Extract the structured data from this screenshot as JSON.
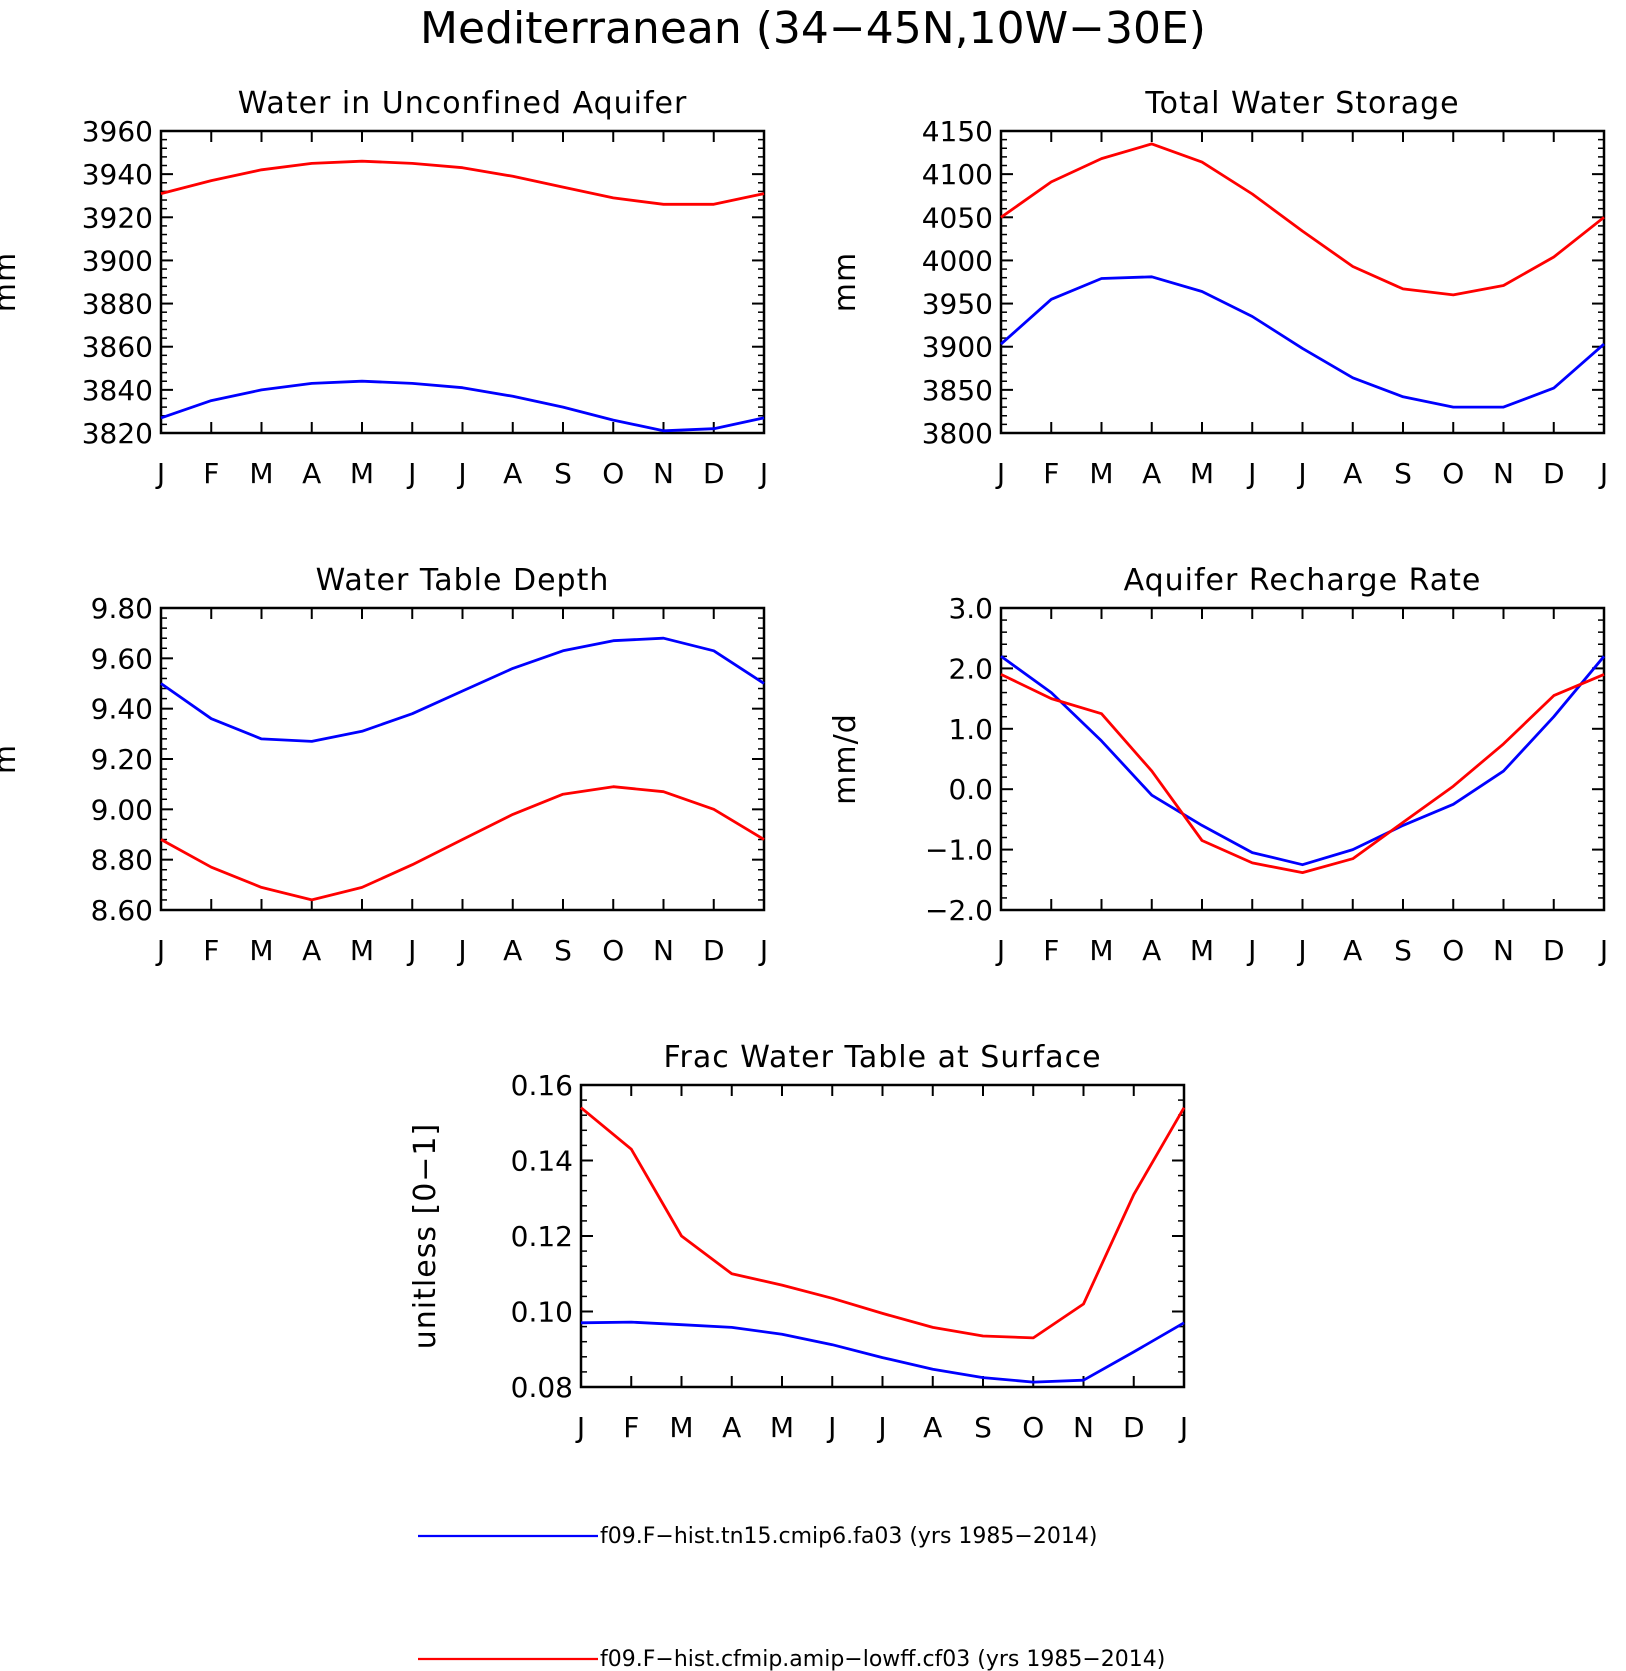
{
  "title": "Mediterranean (34−45N,10W−30E)",
  "months": [
    "J",
    "F",
    "M",
    "A",
    "M",
    "J",
    "J",
    "A",
    "S",
    "O",
    "N",
    "D",
    "J"
  ],
  "colors": {
    "series1": "#0000ff",
    "series2": "#ff0000"
  },
  "legend": {
    "series1": "f09.F−hist.tn15.cmip6.fa03 (yrs 1985−2014)",
    "series2": "f09.F−hist.cfmip.amip−lowff.cf03 (yrs 1985−2014)"
  },
  "chart_data": [
    {
      "type": "line",
      "title": "Water in Unconfined Aquifer",
      "ylabel": "mm",
      "ylim": [
        3820,
        3960
      ],
      "yticks": [
        "3820",
        "3840",
        "3860",
        "3880",
        "3900",
        "3920",
        "3940",
        "3960"
      ],
      "categories": [
        "J",
        "F",
        "M",
        "A",
        "M",
        "J",
        "J",
        "A",
        "S",
        "O",
        "N",
        "D",
        "J"
      ],
      "series": [
        {
          "name": "f09.F−hist.tn15.cmip6.fa03 (yrs 1985−2014)",
          "values": [
            3827,
            3835,
            3840,
            3843,
            3844,
            3843,
            3841,
            3837,
            3832,
            3826,
            3821,
            3822,
            3827
          ]
        },
        {
          "name": "f09.F−hist.cfmip.amip−lowff.cf03 (yrs 1985−2014)",
          "values": [
            3931,
            3937,
            3942,
            3945,
            3946,
            3945,
            3943,
            3939,
            3934,
            3929,
            3926,
            3926,
            3931
          ]
        }
      ]
    },
    {
      "type": "line",
      "title": "Total Water Storage",
      "ylabel": "mm",
      "ylim": [
        3800,
        4150
      ],
      "yticks": [
        "3800",
        "3850",
        "3900",
        "3950",
        "4000",
        "4050",
        "4100",
        "4150"
      ],
      "categories": [
        "J",
        "F",
        "M",
        "A",
        "M",
        "J",
        "J",
        "A",
        "S",
        "O",
        "N",
        "D",
        "J"
      ],
      "series": [
        {
          "name": "f09.F−hist.tn15.cmip6.fa03 (yrs 1985−2014)",
          "values": [
            3903,
            3955,
            3979,
            3981,
            3964,
            3935,
            3898,
            3864,
            3842,
            3830,
            3830,
            3852,
            3903
          ]
        },
        {
          "name": "f09.F−hist.cfmip.amip−lowff.cf03 (yrs 1985−2014)",
          "values": [
            4050,
            4091,
            4118,
            4135,
            4114,
            4077,
            4034,
            3993,
            3967,
            3960,
            3971,
            4004,
            4050
          ]
        }
      ]
    },
    {
      "type": "line",
      "title": "Water Table Depth",
      "ylabel": "m",
      "ylim": [
        8.6,
        9.8
      ],
      "yticks": [
        "8.60",
        "8.80",
        "9.00",
        "9.20",
        "9.40",
        "9.60",
        "9.80"
      ],
      "categories": [
        "J",
        "F",
        "M",
        "A",
        "M",
        "J",
        "J",
        "A",
        "S",
        "O",
        "N",
        "D",
        "J"
      ],
      "series": [
        {
          "name": "f09.F−hist.tn15.cmip6.fa03 (yrs 1985−2014)",
          "values": [
            9.5,
            9.36,
            9.28,
            9.27,
            9.31,
            9.38,
            9.47,
            9.56,
            9.63,
            9.67,
            9.68,
            9.63,
            9.5
          ]
        },
        {
          "name": "f09.F−hist.cfmip.amip−lowff.cf03 (yrs 1985−2014)",
          "values": [
            8.88,
            8.77,
            8.69,
            8.64,
            8.69,
            8.78,
            8.88,
            8.98,
            9.06,
            9.09,
            9.07,
            9.0,
            8.88
          ]
        }
      ]
    },
    {
      "type": "line",
      "title": "Aquifer Recharge Rate",
      "ylabel": "mm/d",
      "ylim": [
        -2.0,
        3.0
      ],
      "yticks": [
        "−2.0",
        "−1.0",
        "0.0",
        "1.0",
        "2.0",
        "3.0"
      ],
      "categories": [
        "J",
        "F",
        "M",
        "A",
        "M",
        "J",
        "J",
        "A",
        "S",
        "O",
        "N",
        "D",
        "J"
      ],
      "series": [
        {
          "name": "f09.F−hist.tn15.cmip6.fa03 (yrs 1985−2014)",
          "values": [
            2.2,
            1.6,
            0.8,
            -0.1,
            -0.6,
            -1.05,
            -1.25,
            -1.0,
            -0.6,
            -0.25,
            0.3,
            1.2,
            2.2
          ]
        },
        {
          "name": "f09.F−hist.cfmip.amip−lowff.cf03 (yrs 1985−2014)",
          "values": [
            1.9,
            1.5,
            1.25,
            0.3,
            -0.85,
            -1.22,
            -1.38,
            -1.15,
            -0.55,
            0.05,
            0.75,
            1.55,
            1.9
          ]
        }
      ]
    },
    {
      "type": "line",
      "title": "Frac Water Table at Surface",
      "ylabel": "unitless [0−1]",
      "ylim": [
        0.08,
        0.16
      ],
      "yticks": [
        "0.08",
        "0.10",
        "0.12",
        "0.14",
        "0.16"
      ],
      "categories": [
        "J",
        "F",
        "M",
        "A",
        "M",
        "J",
        "J",
        "A",
        "S",
        "O",
        "N",
        "D",
        "J"
      ],
      "series": [
        {
          "name": "f09.F−hist.tn15.cmip6.fa03 (yrs 1985−2014)",
          "values": [
            0.097,
            0.0972,
            0.0965,
            0.0958,
            0.094,
            0.0912,
            0.0878,
            0.0847,
            0.0825,
            0.0813,
            0.0818,
            0.0893,
            0.097
          ]
        },
        {
          "name": "f09.F−hist.cfmip.amip−lowff.cf03 (yrs 1985−2014)",
          "values": [
            0.154,
            0.143,
            0.12,
            0.11,
            0.107,
            0.1035,
            0.0995,
            0.0958,
            0.0935,
            0.093,
            0.102,
            0.131,
            0.154
          ]
        }
      ]
    }
  ]
}
